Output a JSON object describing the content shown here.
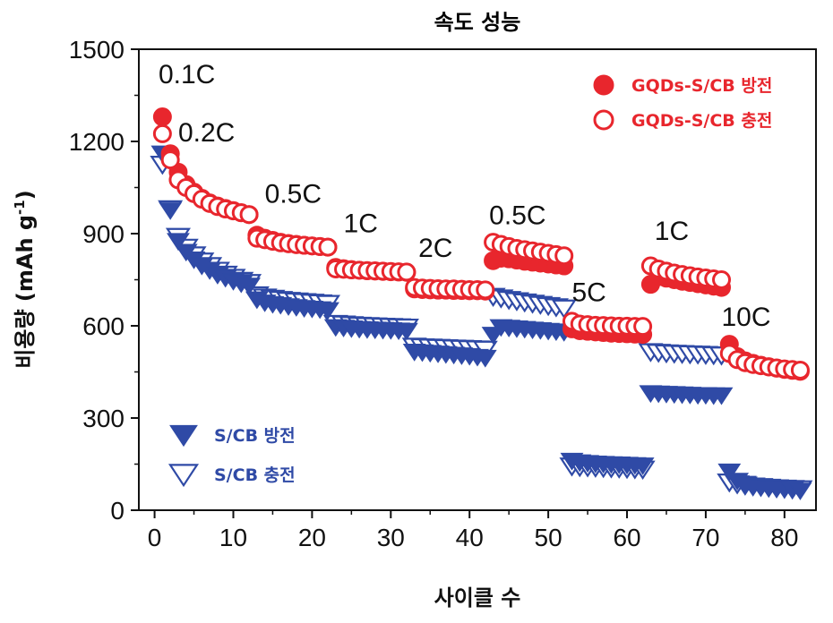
{
  "chart_data": {
    "type": "scatter",
    "title": "속도 성능",
    "xlabel": "사이클 수",
    "ylabel_main": "비용량 (mAh g",
    "ylabel_sup": "-1",
    "ylabel_close": ")",
    "xlim": [
      -2,
      84
    ],
    "ylim": [
      0,
      1500
    ],
    "xticks": [
      0,
      10,
      20,
      30,
      40,
      50,
      60,
      70,
      80
    ],
    "yticks": [
      0,
      300,
      600,
      900,
      1200,
      1500
    ],
    "grid": false,
    "legend_placement": [
      "top-right",
      "bottom-left"
    ],
    "annotations": [
      {
        "text": "0.1C",
        "x": 0.5,
        "y": 1390
      },
      {
        "text": "0.2C",
        "x": 3,
        "y": 1200
      },
      {
        "text": "0.5C",
        "x": 14,
        "y": 1000
      },
      {
        "text": "1C",
        "x": 24,
        "y": 905
      },
      {
        "text": "2C",
        "x": 33.5,
        "y": 825
      },
      {
        "text": "0.5C",
        "x": 42.5,
        "y": 930
      },
      {
        "text": "5C",
        "x": 53,
        "y": 680
      },
      {
        "text": "1C",
        "x": 63.5,
        "y": 880
      },
      {
        "text": "10C",
        "x": 72,
        "y": 600
      }
    ],
    "series": [
      {
        "name": "GQDs-S/CB 방전",
        "color": "#e8262d",
        "marker": "filled-circle",
        "x": [
          1,
          2,
          3,
          4,
          5,
          6,
          7,
          8,
          9,
          10,
          11,
          12,
          13,
          14,
          15,
          16,
          17,
          18,
          19,
          20,
          21,
          22,
          23,
          24,
          25,
          26,
          27,
          28,
          29,
          30,
          31,
          32,
          33,
          34,
          35,
          36,
          37,
          38,
          39,
          40,
          41,
          42,
          43,
          44,
          45,
          46,
          47,
          48,
          49,
          50,
          51,
          52,
          53,
          54,
          55,
          56,
          57,
          58,
          59,
          60,
          61,
          62,
          63,
          64,
          65,
          66,
          67,
          68,
          69,
          70,
          71,
          72,
          73,
          74,
          75,
          76,
          77,
          78,
          79,
          80,
          81,
          82
        ],
        "values": [
          1280,
          1160,
          1100,
          1060,
          1035,
          1015,
          1000,
          990,
          982,
          975,
          968,
          962,
          895,
          885,
          878,
          872,
          868,
          865,
          862,
          860,
          858,
          856,
          790,
          786,
          783,
          781,
          779,
          778,
          777,
          776,
          775,
          774,
          720,
          718,
          717,
          716,
          716,
          715,
          715,
          714,
          714,
          713,
          812,
          820,
          818,
          814,
          810,
          807,
          804,
          801,
          798,
          795,
          590,
          584,
          582,
          580,
          578,
          576,
          575,
          574,
          573,
          572,
          735,
          760,
          755,
          750,
          745,
          741,
          737,
          733,
          729,
          725,
          540,
          500,
          486,
          478,
          472,
          467,
          462,
          458,
          455,
          452
        ]
      },
      {
        "name": "GQDs-S/CB 충전",
        "color": "#e8262d",
        "marker": "open-circle",
        "x": [
          1,
          2,
          3,
          4,
          5,
          6,
          7,
          8,
          9,
          10,
          11,
          12,
          13,
          14,
          15,
          16,
          17,
          18,
          19,
          20,
          21,
          22,
          23,
          24,
          25,
          26,
          27,
          28,
          29,
          30,
          31,
          32,
          33,
          34,
          35,
          36,
          37,
          38,
          39,
          40,
          41,
          42,
          43,
          44,
          45,
          46,
          47,
          48,
          49,
          50,
          51,
          52,
          53,
          54,
          55,
          56,
          57,
          58,
          59,
          60,
          61,
          62,
          63,
          64,
          65,
          66,
          67,
          68,
          69,
          70,
          71,
          72,
          73,
          74,
          75,
          76,
          77,
          78,
          79,
          80,
          81,
          82
        ],
        "values": [
          1225,
          1140,
          1075,
          1050,
          1030,
          1012,
          998,
          988,
          980,
          974,
          968,
          962,
          885,
          880,
          875,
          870,
          867,
          864,
          862,
          860,
          858,
          856,
          785,
          784,
          782,
          781,
          780,
          779,
          778,
          777,
          776,
          775,
          725,
          723,
          722,
          721,
          720,
          720,
          719,
          718,
          718,
          717,
          872,
          865,
          858,
          852,
          848,
          844,
          840,
          836,
          832,
          828,
          615,
          606,
          604,
          602,
          601,
          600,
          599,
          599,
          598,
          598,
          795,
          785,
          778,
          772,
          767,
          763,
          759,
          756,
          753,
          750,
          510,
          490,
          480,
          474,
          470,
          466,
          463,
          460,
          458,
          456
        ]
      },
      {
        "name": "S/CB 방전",
        "color": "#2f4aa6",
        "marker": "filled-down-triangle",
        "x": [
          1,
          2,
          3,
          4,
          5,
          6,
          7,
          8,
          9,
          10,
          11,
          12,
          13,
          14,
          15,
          16,
          17,
          18,
          19,
          20,
          21,
          22,
          23,
          24,
          25,
          26,
          27,
          28,
          29,
          30,
          31,
          32,
          33,
          34,
          35,
          36,
          37,
          38,
          39,
          40,
          41,
          42,
          43,
          44,
          45,
          46,
          47,
          48,
          49,
          50,
          51,
          52,
          53,
          54,
          55,
          56,
          57,
          58,
          59,
          60,
          61,
          62,
          63,
          64,
          65,
          66,
          67,
          68,
          69,
          70,
          71,
          72,
          73,
          74,
          75,
          76,
          77,
          78,
          79,
          80,
          81,
          82
        ],
        "values": [
          1165,
          980,
          880,
          845,
          820,
          800,
          785,
          770,
          760,
          750,
          742,
          735,
          690,
          680,
          675,
          672,
          668,
          665,
          662,
          660,
          658,
          655,
          600,
          598,
          596,
          594,
          593,
          592,
          591,
          590,
          589,
          588,
          520,
          518,
          516,
          514,
          512,
          510,
          508,
          506,
          503,
          500,
          575,
          600,
          598,
          596,
          594,
          592,
          590,
          588,
          586,
          584,
          165,
          160,
          158,
          156,
          155,
          154,
          153,
          152,
          151,
          150,
          385,
          384,
          383,
          382,
          381,
          380,
          379,
          379,
          378,
          378,
          130,
          100,
          90,
          84,
          80,
          77,
          74,
          72,
          70,
          68
        ]
      },
      {
        "name": "S/CB 충전",
        "color": "#2f4aa6",
        "marker": "open-down-triangle",
        "x": [
          1,
          2,
          3,
          4,
          5,
          6,
          7,
          8,
          9,
          10,
          11,
          12,
          13,
          14,
          15,
          16,
          17,
          18,
          19,
          20,
          21,
          22,
          23,
          24,
          25,
          26,
          27,
          28,
          29,
          30,
          31,
          32,
          33,
          34,
          35,
          36,
          37,
          38,
          39,
          40,
          41,
          42,
          43,
          44,
          45,
          46,
          47,
          48,
          49,
          50,
          51,
          52,
          53,
          54,
          55,
          56,
          57,
          58,
          59,
          60,
          61,
          62,
          63,
          64,
          65,
          66,
          67,
          68,
          69,
          70,
          71,
          72,
          73,
          74,
          75,
          76,
          77,
          78,
          79,
          80,
          81,
          82
        ],
        "values": [
          1130,
          985,
          895,
          860,
          835,
          815,
          800,
          785,
          772,
          762,
          752,
          745,
          705,
          698,
          694,
          690,
          687,
          685,
          683,
          681,
          679,
          677,
          612,
          610,
          608,
          606,
          605,
          604,
          603,
          602,
          601,
          600,
          538,
          536,
          535,
          534,
          533,
          532,
          531,
          530,
          529,
          528,
          700,
          695,
          690,
          686,
          682,
          678,
          674,
          670,
          666,
          662,
          148,
          146,
          145,
          144,
          143,
          142,
          141,
          140,
          139,
          138,
          520,
          518,
          516,
          515,
          514,
          513,
          512,
          511,
          510,
          509,
          96,
          90,
          86,
          83,
          81,
          79,
          77,
          76,
          75,
          74
        ]
      }
    ]
  }
}
